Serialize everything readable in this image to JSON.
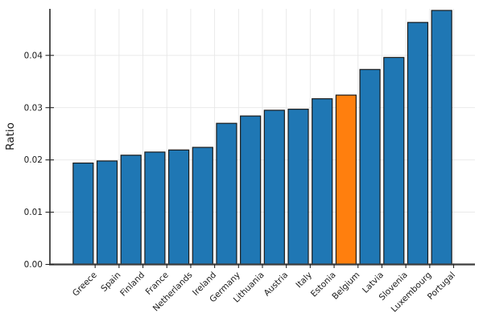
{
  "chart_data": {
    "type": "bar",
    "title": "",
    "xlabel": "",
    "ylabel": "Ratio",
    "categories": [
      "Greece",
      "Spain",
      "Finland",
      "France",
      "Netherlands",
      "Ireland",
      "Germany",
      "Lithuania",
      "Austria",
      "Italy",
      "Estonia",
      "Belgium",
      "Latvia",
      "Slovenia",
      "Luxembourg",
      "Portugal"
    ],
    "values": [
      0.0194,
      0.0198,
      0.0209,
      0.0215,
      0.0219,
      0.0224,
      0.027,
      0.0284,
      0.0295,
      0.0297,
      0.0317,
      0.0324,
      0.0373,
      0.0396,
      0.0463,
      0.0486
    ],
    "highlighted_category": "Belgium",
    "bar_color": "#1f77b4",
    "highlight_color": "#ff7f0e",
    "bar_edge_color": "#1a1a1a",
    "grid_color": "#e7e7e7",
    "axis_color": "#3d3d3d",
    "ylim": [
      0,
      0.0489
    ],
    "yticks": [
      0,
      0.01,
      0.02,
      0.03,
      0.04
    ],
    "ytick_labels": [
      "0.00",
      "0.01",
      "0.02",
      "0.03",
      "0.04"
    ],
    "grid": true,
    "legend": false,
    "sorted": "ascending"
  }
}
